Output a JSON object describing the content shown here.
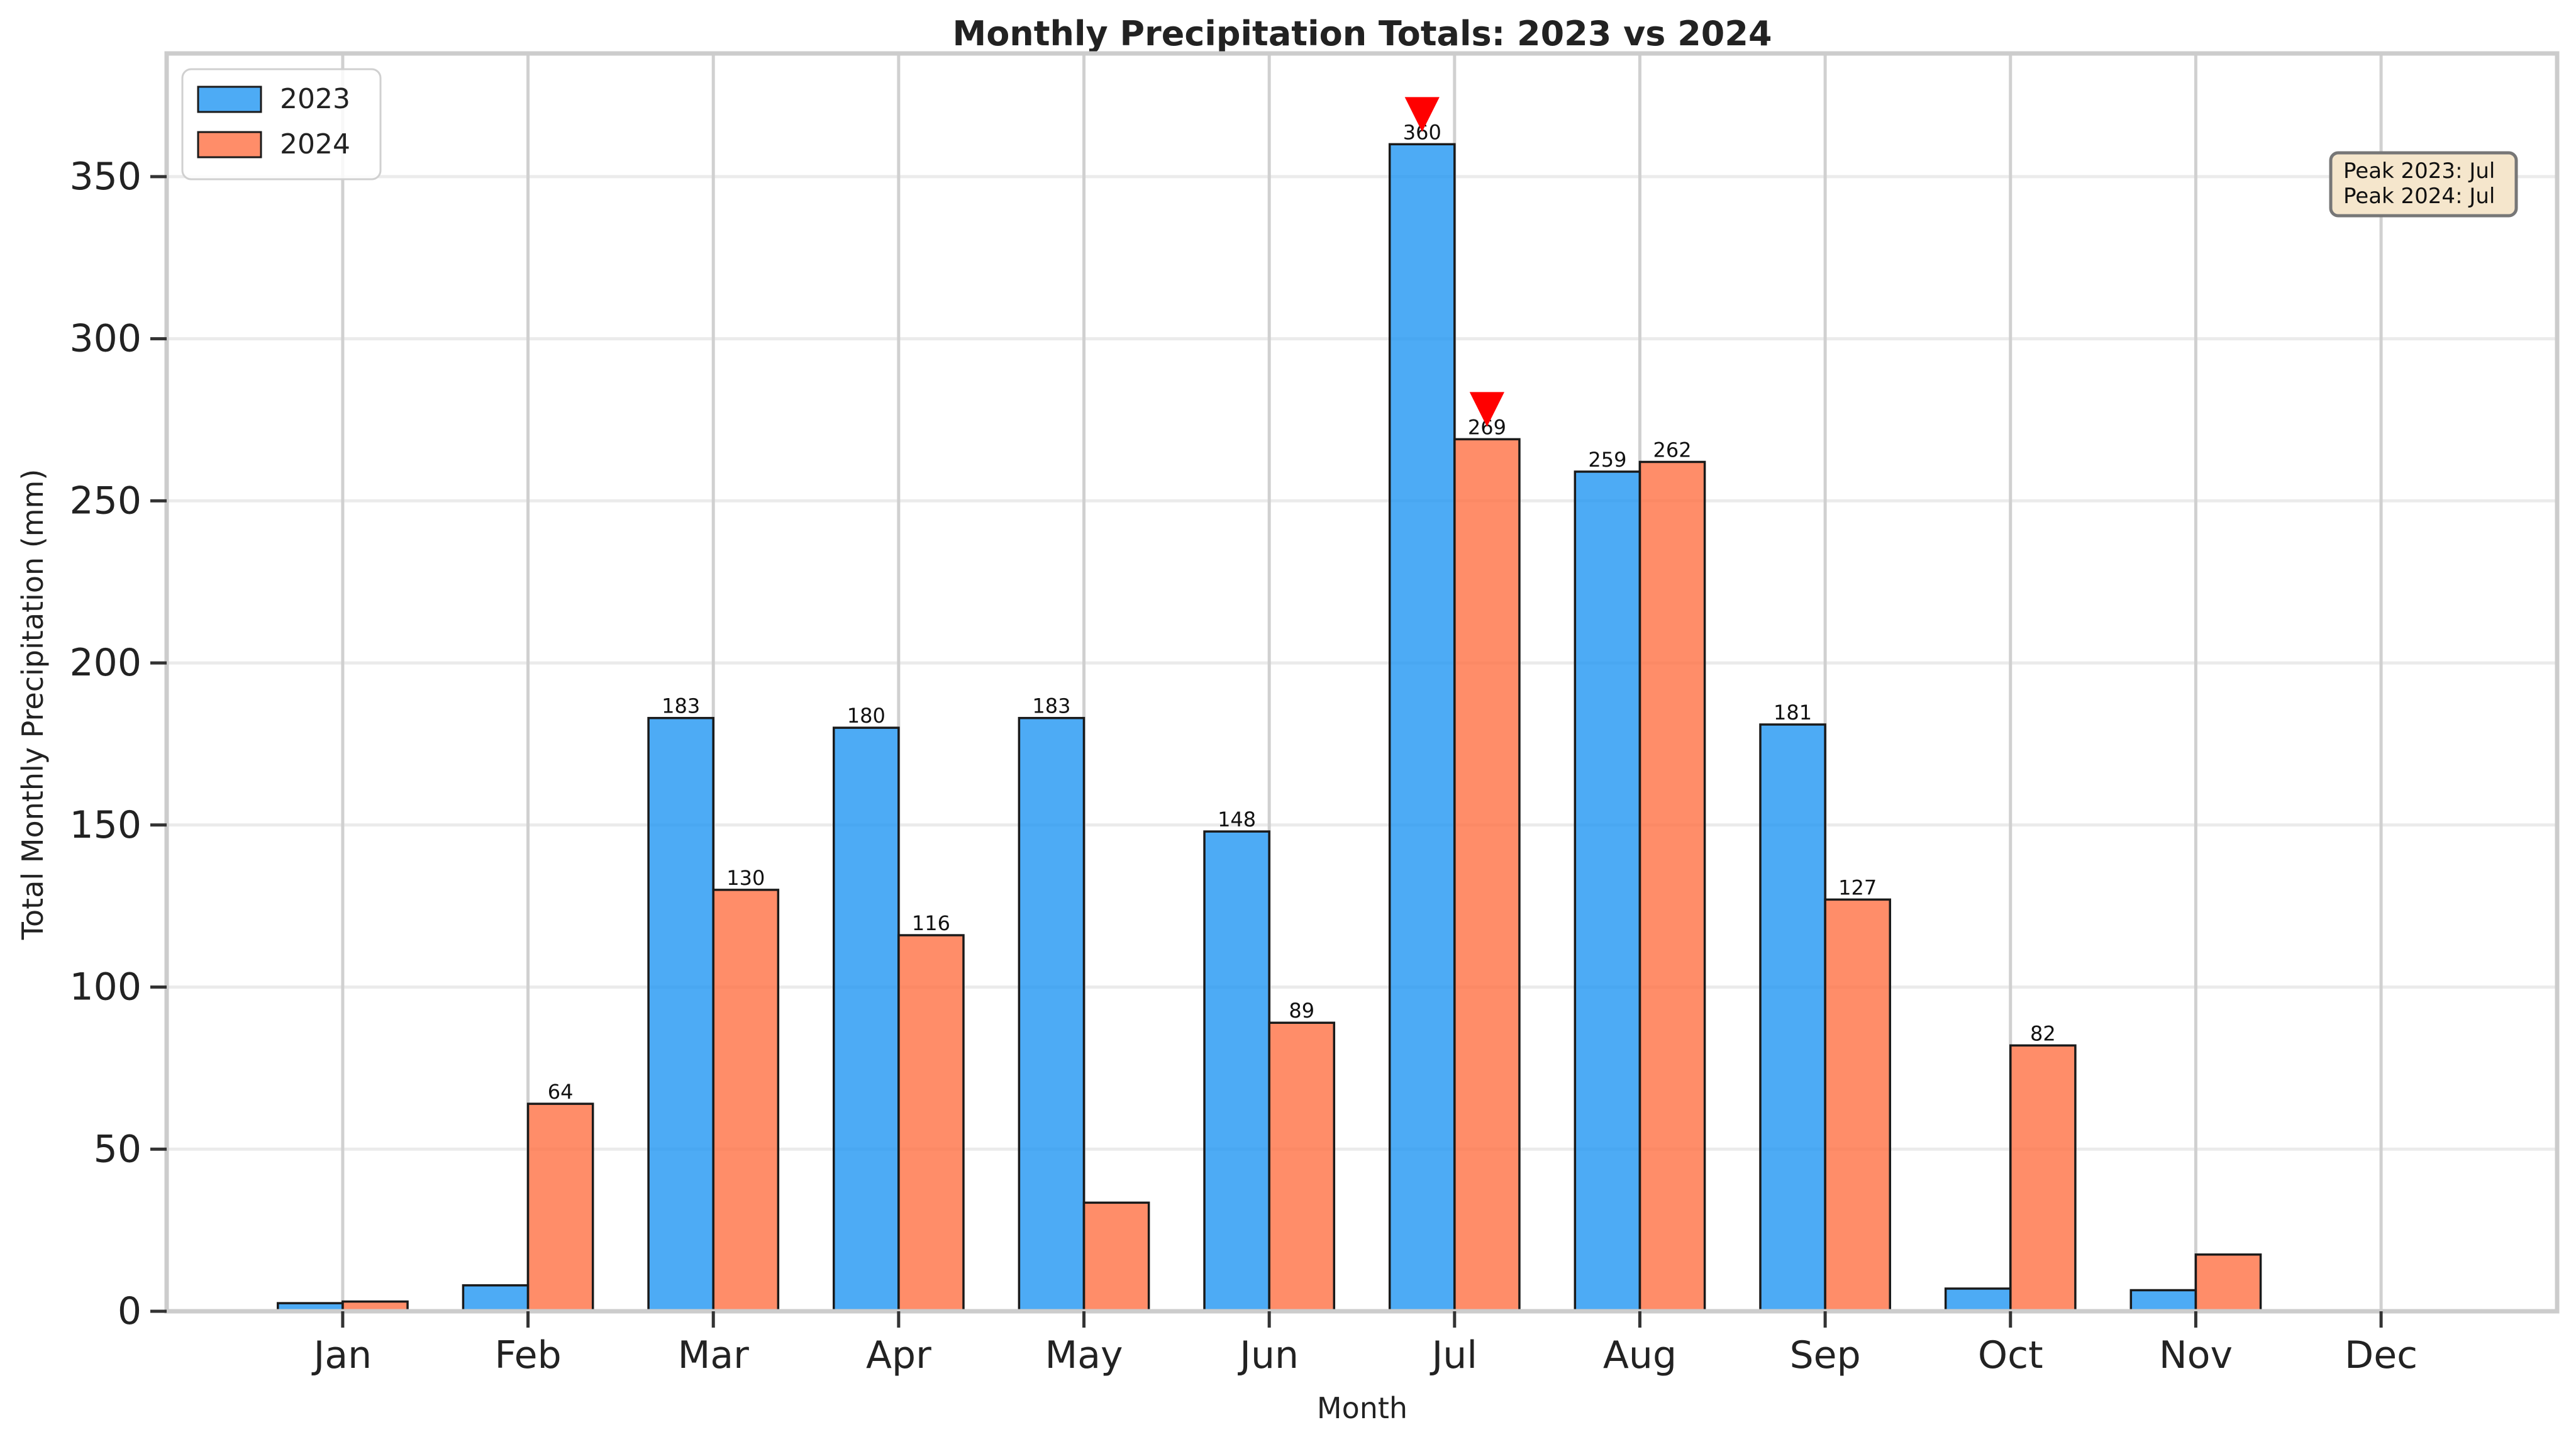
{
  "chart_data": {
    "type": "bar",
    "title": "Monthly Precipitation Totals: 2023 vs 2024",
    "xlabel": "Month",
    "ylabel": "Total Monthly Precipitation (mm)",
    "categories": [
      "Jan",
      "Feb",
      "Mar",
      "Apr",
      "May",
      "Jun",
      "Jul",
      "Aug",
      "Sep",
      "Oct",
      "Nov",
      "Dec"
    ],
    "series": [
      {
        "name": "2023",
        "color": "#2196F3",
        "values": [
          2.5,
          8,
          183,
          180,
          183,
          148,
          360,
          259,
          181,
          7,
          6.5,
          0
        ],
        "data_labels": [
          "",
          "",
          "183",
          "180",
          "183",
          "148",
          "360",
          "259",
          "181",
          "",
          "",
          ""
        ]
      },
      {
        "name": "2024",
        "color": "#FF7043",
        "values": [
          3,
          64,
          130,
          116,
          33.5,
          89,
          269,
          262,
          127,
          82,
          17.5,
          0
        ],
        "data_labels": [
          "",
          "64",
          "130",
          "116",
          "",
          "89",
          "269",
          "262",
          "127",
          "82",
          "",
          ""
        ]
      }
    ],
    "ylim": [
      0,
      388
    ],
    "yticks": [
      0,
      50,
      100,
      150,
      200,
      250,
      300,
      350
    ],
    "grid": true,
    "legend_position": "top-left",
    "peak_markers": [
      {
        "series": "2023",
        "category": "Jul",
        "value": 360,
        "color": "#FF0000"
      },
      {
        "series": "2024",
        "category": "Jul",
        "value": 269,
        "color": "#FF0000"
      }
    ],
    "annotation_box": {
      "lines": [
        "Peak 2023: Jul",
        "Peak 2024: Jul"
      ],
      "background": "#F5E6CC",
      "position": "top-right"
    }
  }
}
